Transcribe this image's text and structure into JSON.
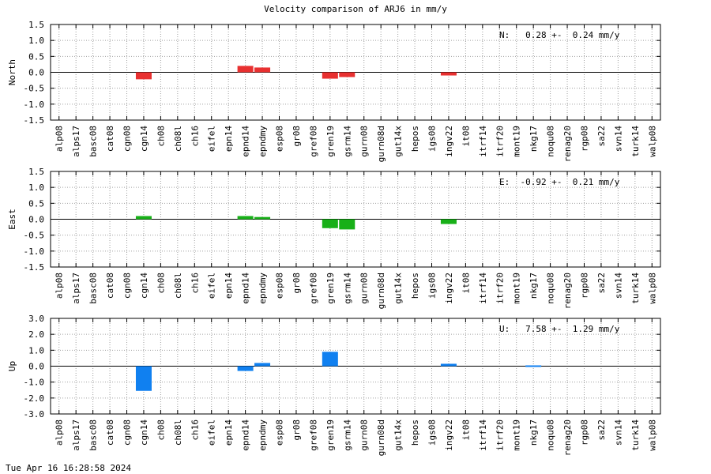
{
  "page": {
    "title": "Velocity comparison of ARJ6 in mm/y",
    "timestamp": "Tue Apr 16 16:28:58 2024"
  },
  "chart_data": [
    {
      "type": "bar",
      "ylabel": "North",
      "ylim": [
        -1.5,
        1.5
      ],
      "yticks": [
        "1.5",
        "1.0",
        "0.5",
        "0.0",
        "-0.5",
        "-1.0",
        "-1.5"
      ],
      "annotation": "N:   0.28 +-  0.24 mm/y",
      "color": "#e83030",
      "grid": true,
      "categories": [
        "alp08",
        "alps17",
        "basc08",
        "cat08",
        "cgn08",
        "cgn14",
        "ch08",
        "ch08l",
        "ch16",
        "eifel",
        "epn14",
        "epnd14",
        "epndmy",
        "esp08",
        "gr08",
        "gref08",
        "gren19",
        "gsrm14",
        "gurn08",
        "gurn08d",
        "gut14x",
        "hepos",
        "igs08",
        "ingv22",
        "it08",
        "itrf14",
        "itrf20",
        "mont19",
        "nkg17",
        "noqu08",
        "renag20",
        "rgp08",
        "sa22",
        "svn14",
        "turk14",
        "walp08"
      ],
      "values": [
        0,
        0,
        0,
        0,
        0,
        -0.22,
        0,
        0,
        0,
        0,
        0,
        0.2,
        0.15,
        0,
        0,
        0,
        -0.2,
        -0.15,
        0,
        0,
        0,
        0,
        0,
        -0.1,
        0,
        0,
        0,
        0,
        0,
        0,
        0,
        0,
        0,
        0,
        0,
        0
      ]
    },
    {
      "type": "bar",
      "ylabel": "East",
      "ylim": [
        -1.5,
        1.5
      ],
      "yticks": [
        "1.5",
        "1.0",
        "0.5",
        "0.0",
        "-0.5",
        "-1.0",
        "-1.5"
      ],
      "annotation": "E:  -0.92 +-  0.21 mm/y",
      "color": "#18b018",
      "grid": true,
      "categories": [
        "alp08",
        "alps17",
        "basc08",
        "cat08",
        "cgn08",
        "cgn14",
        "ch08",
        "ch08l",
        "ch16",
        "eifel",
        "epn14",
        "epnd14",
        "epndmy",
        "esp08",
        "gr08",
        "gref08",
        "gren19",
        "gsrm14",
        "gurn08",
        "gurn08d",
        "gut14x",
        "hepos",
        "igs08",
        "ingv22",
        "it08",
        "itrf14",
        "itrf20",
        "mont19",
        "nkg17",
        "noqu08",
        "renag20",
        "rgp08",
        "sa22",
        "svn14",
        "turk14",
        "walp08"
      ],
      "values": [
        0,
        0,
        0,
        0,
        0,
        0.1,
        0,
        0,
        0,
        0,
        0,
        0.1,
        0.07,
        0,
        0,
        0,
        -0.28,
        -0.32,
        0,
        0,
        0,
        0,
        0,
        -0.15,
        0,
        0,
        0,
        0,
        0,
        0,
        0,
        0,
        0,
        0,
        0,
        0
      ]
    },
    {
      "type": "bar",
      "ylabel": "Up",
      "ylim": [
        -3.0,
        3.0
      ],
      "yticks": [
        "3.0",
        "2.0",
        "1.0",
        "0.0",
        "-1.0",
        "-2.0",
        "-3.0"
      ],
      "annotation": "U:   7.58 +-  1.29 mm/y",
      "color": "#1080f0",
      "grid": true,
      "categories": [
        "alp08",
        "alps17",
        "basc08",
        "cat08",
        "cgn08",
        "cgn14",
        "ch08",
        "ch08l",
        "ch16",
        "eifel",
        "epn14",
        "epnd14",
        "epndmy",
        "esp08",
        "gr08",
        "gref08",
        "gren19",
        "gsrm14",
        "gurn08",
        "gurn08d",
        "gut14x",
        "hepos",
        "igs08",
        "ingv22",
        "it08",
        "itrf14",
        "itrf20",
        "mont19",
        "nkg17",
        "noqu08",
        "renag20",
        "rgp08",
        "sa22",
        "svn14",
        "turk14",
        "walp08"
      ],
      "values": [
        0,
        0,
        0,
        0,
        0,
        -1.55,
        0,
        0,
        0,
        0,
        0,
        -0.3,
        0.2,
        0,
        0,
        0,
        0.9,
        0,
        0,
        0,
        0,
        0,
        0,
        0.15,
        0,
        0,
        0,
        0,
        0.05,
        0,
        0,
        0,
        0,
        0,
        0,
        0
      ]
    }
  ]
}
